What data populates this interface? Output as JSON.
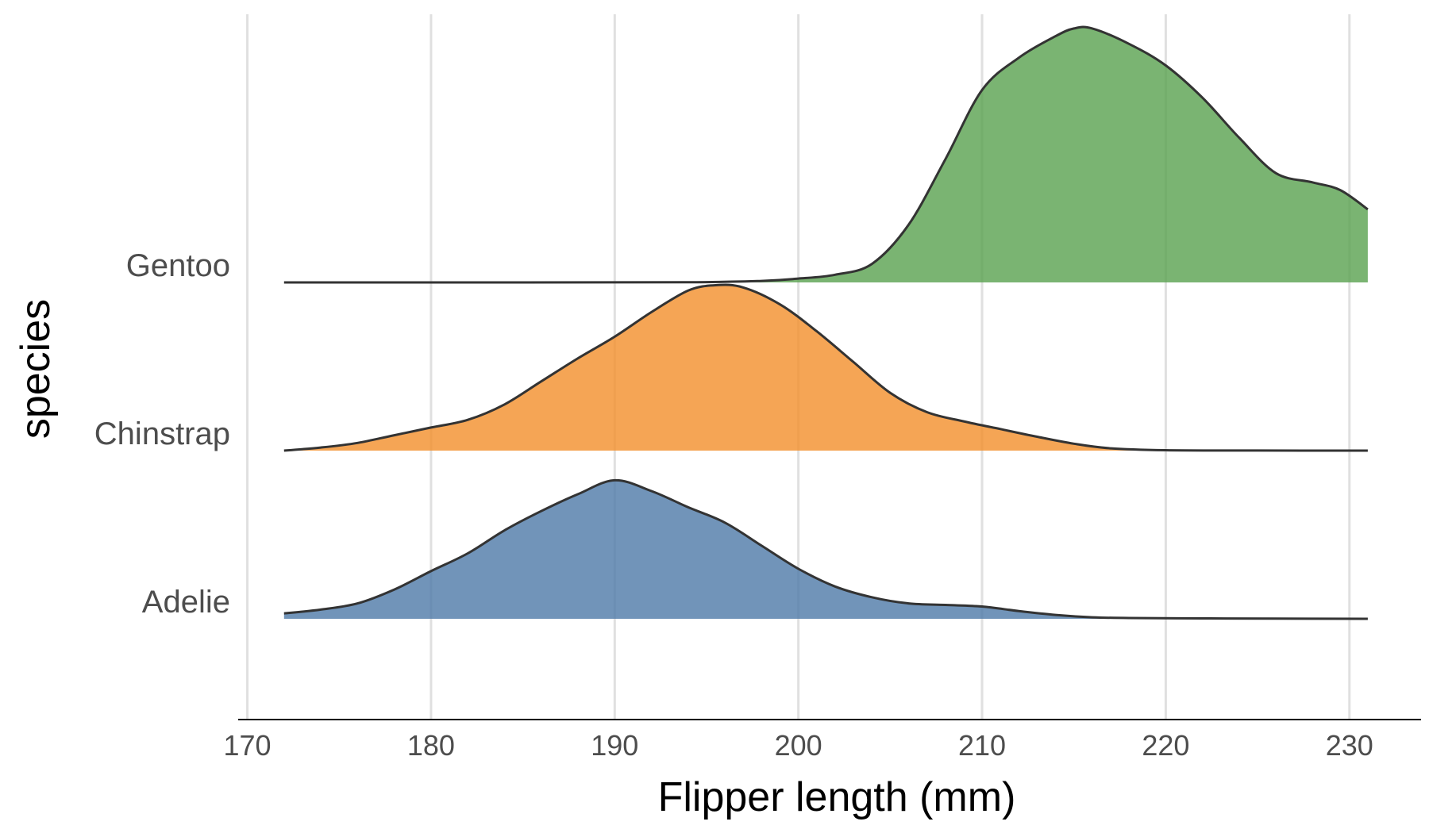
{
  "chart_data": {
    "type": "area",
    "subtype": "ridgeline",
    "title": "",
    "xlabel": "Flipper length (mm)",
    "ylabel": "species",
    "xlim": [
      169.5,
      233.9
    ],
    "xticks": [
      170,
      180,
      190,
      200,
      210,
      220,
      230
    ],
    "grid": "vertical",
    "legend": "none",
    "density_range": [
      172,
      231
    ],
    "series": [
      {
        "name": "Adelie",
        "color": "#4e79a7",
        "points": [
          [
            172,
            0.07
          ],
          [
            174,
            0.12
          ],
          [
            176,
            0.2
          ],
          [
            178,
            0.38
          ],
          [
            180,
            0.62
          ],
          [
            182,
            0.85
          ],
          [
            184,
            1.15
          ],
          [
            186,
            1.4
          ],
          [
            188,
            1.62
          ],
          [
            190,
            1.8
          ],
          [
            192,
            1.66
          ],
          [
            194,
            1.45
          ],
          [
            196,
            1.25
          ],
          [
            198,
            0.95
          ],
          [
            200,
            0.65
          ],
          [
            202,
            0.42
          ],
          [
            204,
            0.28
          ],
          [
            206,
            0.2
          ],
          [
            208,
            0.18
          ],
          [
            210,
            0.16
          ],
          [
            212,
            0.1
          ],
          [
            214,
            0.05
          ],
          [
            216,
            0.02
          ],
          [
            218,
            0.01
          ],
          [
            222,
            0.005
          ],
          [
            226,
            0.003
          ],
          [
            231,
            0.0
          ]
        ]
      },
      {
        "name": "Chinstrap",
        "color": "#f28e2b",
        "points": [
          [
            172,
            0.0
          ],
          [
            174,
            0.04
          ],
          [
            176,
            0.1
          ],
          [
            178,
            0.2
          ],
          [
            180,
            0.3
          ],
          [
            182,
            0.4
          ],
          [
            184,
            0.6
          ],
          [
            186,
            0.9
          ],
          [
            188,
            1.2
          ],
          [
            190,
            1.48
          ],
          [
            192,
            1.8
          ],
          [
            194,
            2.08
          ],
          [
            195.5,
            2.15
          ],
          [
            197,
            2.12
          ],
          [
            199,
            1.9
          ],
          [
            201,
            1.55
          ],
          [
            203,
            1.15
          ],
          [
            205,
            0.75
          ],
          [
            207,
            0.5
          ],
          [
            209,
            0.38
          ],
          [
            211,
            0.28
          ],
          [
            213,
            0.18
          ],
          [
            215,
            0.09
          ],
          [
            217,
            0.03
          ],
          [
            220,
            0.005
          ],
          [
            225,
            0.001
          ],
          [
            231,
            0.0
          ]
        ]
      },
      {
        "name": "Gentoo",
        "color": "#59a14f",
        "points": [
          [
            172,
            0.0
          ],
          [
            185,
            0.0
          ],
          [
            194,
            0.002
          ],
          [
            198,
            0.02
          ],
          [
            200,
            0.05
          ],
          [
            202,
            0.1
          ],
          [
            204,
            0.24
          ],
          [
            206,
            0.75
          ],
          [
            208,
            1.6
          ],
          [
            210,
            2.5
          ],
          [
            212,
            2.92
          ],
          [
            214,
            3.2
          ],
          [
            215,
            3.3
          ],
          [
            216,
            3.3
          ],
          [
            218,
            3.1
          ],
          [
            220,
            2.82
          ],
          [
            222,
            2.4
          ],
          [
            224,
            1.88
          ],
          [
            226,
            1.42
          ],
          [
            228,
            1.3
          ],
          [
            229.5,
            1.2
          ],
          [
            231,
            0.95
          ]
        ]
      }
    ]
  }
}
